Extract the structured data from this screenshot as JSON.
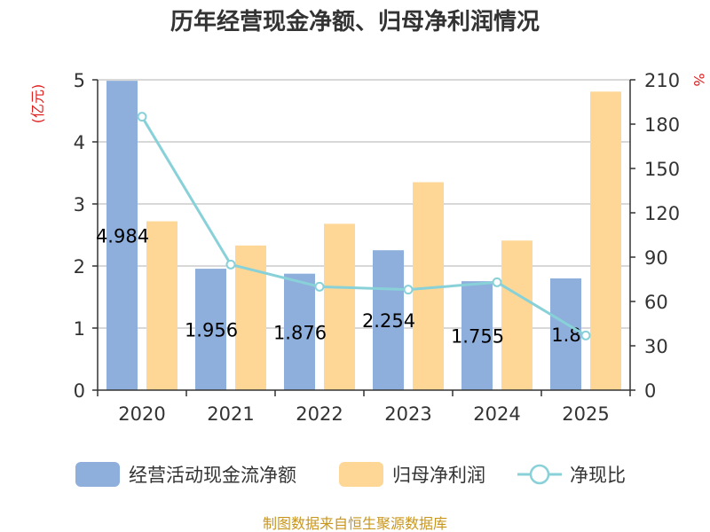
{
  "chart_data": {
    "type": "bar",
    "title": "历年经营现金净额、归母净利润情况",
    "categories": [
      "2020",
      "2021",
      "2022",
      "2023",
      "2024",
      "2025"
    ],
    "series": [
      {
        "name": "经营活动现金流净额",
        "kind": "bar",
        "axis": "left",
        "color": "#8eaedb",
        "values": [
          4.984,
          1.956,
          1.876,
          2.254,
          1.755,
          1.8
        ],
        "labels": [
          "4.984",
          "1.956",
          "1.876",
          "2.254",
          "1.755",
          "1.8"
        ]
      },
      {
        "name": "归母净利润",
        "kind": "bar",
        "axis": "left",
        "color": "#fed796",
        "values": [
          2.72,
          2.33,
          2.68,
          3.35,
          2.41,
          4.81
        ]
      },
      {
        "name": "净现比",
        "kind": "line",
        "axis": "right",
        "color": "#88d1d8",
        "values": [
          185,
          85,
          70,
          68,
          73,
          37
        ]
      }
    ],
    "left_axis": {
      "unit": "(亿元)",
      "ylim": [
        0,
        5
      ],
      "ticks": [
        "0",
        "1",
        "2",
        "3",
        "4",
        "5"
      ]
    },
    "right_axis": {
      "unit": "%",
      "ylim": [
        0,
        210
      ],
      "ticks": [
        "0",
        "30",
        "60",
        "90",
        "120",
        "150",
        "180",
        "210"
      ]
    },
    "grid": true,
    "legend_position": "bottom"
  },
  "source": "制图数据来自恒生聚源数据库"
}
